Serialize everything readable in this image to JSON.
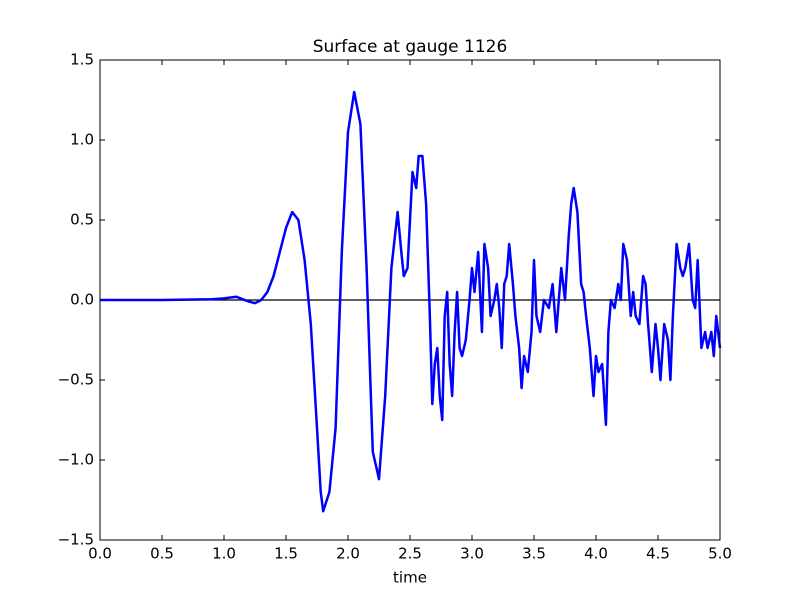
{
  "chart_data": {
    "type": "line",
    "title": "Surface at gauge 1126",
    "xlabel": "time",
    "x": [
      0,
      0.5,
      0.9,
      1.0,
      1.1,
      1.2,
      1.25,
      1.3,
      1.35,
      1.4,
      1.45,
      1.5,
      1.55,
      1.6,
      1.65,
      1.7,
      1.75,
      1.78,
      1.8,
      1.85,
      1.9,
      1.95,
      2.0,
      2.05,
      2.1,
      2.15,
      2.18,
      2.2,
      2.23,
      2.25,
      2.3,
      2.35,
      2.4,
      2.43,
      2.45,
      2.48,
      2.5,
      2.52,
      2.55,
      2.57,
      2.6,
      2.63,
      2.66,
      2.68,
      2.7,
      2.72,
      2.74,
      2.76,
      2.78,
      2.8,
      2.82,
      2.84,
      2.86,
      2.88,
      2.9,
      2.92,
      2.95,
      2.98,
      3.0,
      3.02,
      3.05,
      3.08,
      3.1,
      3.13,
      3.15,
      3.18,
      3.2,
      3.22,
      3.24,
      3.26,
      3.28,
      3.3,
      3.33,
      3.35,
      3.38,
      3.4,
      3.42,
      3.45,
      3.48,
      3.5,
      3.52,
      3.55,
      3.58,
      3.62,
      3.65,
      3.68,
      3.7,
      3.72,
      3.75,
      3.78,
      3.8,
      3.82,
      3.85,
      3.88,
      3.9,
      3.92,
      3.95,
      3.98,
      4.0,
      4.02,
      4.05,
      4.08,
      4.1,
      4.12,
      4.15,
      4.18,
      4.2,
      4.22,
      4.25,
      4.28,
      4.3,
      4.32,
      4.35,
      4.38,
      4.4,
      4.42,
      4.45,
      4.48,
      4.5,
      4.52,
      4.55,
      4.58,
      4.6,
      4.62,
      4.65,
      4.68,
      4.7,
      4.72,
      4.75,
      4.78,
      4.8,
      4.82,
      4.85,
      4.88,
      4.9,
      4.93,
      4.95,
      4.97,
      5.0
    ],
    "series": [
      {
        "name": "surface",
        "color": "#0000ff",
        "values": [
          0,
          0,
          0.005,
          0.01,
          0.02,
          -0.01,
          -0.02,
          0.0,
          0.05,
          0.15,
          0.3,
          0.45,
          0.55,
          0.5,
          0.25,
          -0.15,
          -0.8,
          -1.2,
          -1.32,
          -1.2,
          -0.8,
          0.3,
          1.05,
          1.3,
          1.1,
          0.2,
          -0.5,
          -0.95,
          -1.05,
          -1.12,
          -0.6,
          0.2,
          0.55,
          0.3,
          0.15,
          0.2,
          0.5,
          0.8,
          0.7,
          0.9,
          0.9,
          0.6,
          -0.1,
          -0.65,
          -0.4,
          -0.3,
          -0.6,
          -0.75,
          -0.1,
          0.05,
          -0.4,
          -0.6,
          -0.2,
          0.05,
          -0.3,
          -0.35,
          -0.25,
          0.0,
          0.2,
          0.05,
          0.3,
          -0.2,
          0.35,
          0.2,
          -0.1,
          0.0,
          0.1,
          -0.05,
          -0.3,
          0.1,
          0.15,
          0.35,
          0.1,
          -0.1,
          -0.3,
          -0.55,
          -0.35,
          -0.45,
          -0.2,
          0.25,
          -0.1,
          -0.2,
          0.0,
          -0.05,
          0.1,
          -0.2,
          0.0,
          0.2,
          0.0,
          0.4,
          0.6,
          0.7,
          0.55,
          0.1,
          0.05,
          -0.1,
          -0.3,
          -0.6,
          -0.35,
          -0.45,
          -0.4,
          -0.78,
          -0.2,
          0.0,
          -0.05,
          0.1,
          0.0,
          0.35,
          0.25,
          -0.1,
          0.05,
          -0.1,
          -0.15,
          0.15,
          0.1,
          -0.15,
          -0.45,
          -0.15,
          -0.3,
          -0.5,
          -0.15,
          -0.25,
          -0.5,
          -0.1,
          0.35,
          0.2,
          0.15,
          0.2,
          0.35,
          0.0,
          -0.05,
          0.25,
          -0.3,
          -0.2,
          -0.3,
          -0.2,
          -0.35,
          -0.1,
          -0.3
        ]
      }
    ],
    "hlines": [
      0
    ],
    "xlim": [
      0,
      5
    ],
    "ylim": [
      -1.5,
      1.5
    ],
    "xticks": [
      {
        "value": 0,
        "label": "0.0"
      },
      0.5,
      {
        "value": 1,
        "label": "1.0"
      },
      1.5,
      {
        "value": 2,
        "label": "2.0"
      },
      2.5,
      {
        "value": 3,
        "label": "3.0"
      },
      3.5,
      {
        "value": 4,
        "label": "4.0"
      },
      4.5,
      {
        "value": 5,
        "label": "5.0"
      }
    ],
    "yticks": [
      {
        "value": -1.5,
        "label": "−1.5"
      },
      {
        "value": -1,
        "label": "−1.0"
      },
      {
        "value": -0.5,
        "label": "−0.5"
      },
      {
        "value": 0,
        "label": "0.0"
      },
      0.5,
      {
        "value": 1,
        "label": "1.0"
      },
      1.5
    ],
    "grid": false
  }
}
